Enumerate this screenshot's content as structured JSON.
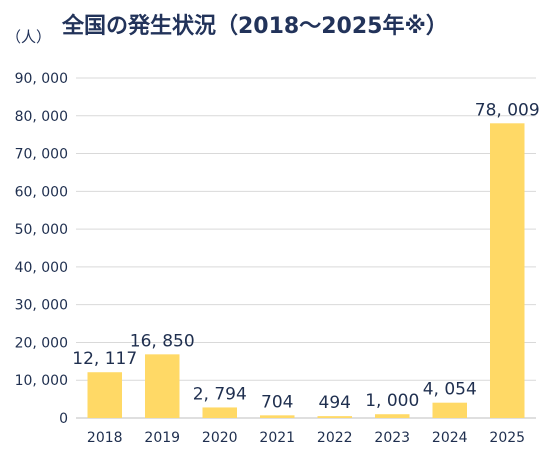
{
  "unit_label": "（人）",
  "chart_data": {
    "type": "bar",
    "title": "全国の発生状況（2018～2025年※）",
    "xlabel": "",
    "ylabel": "（人）",
    "categories": [
      "2018",
      "2019",
      "2020",
      "2021",
      "2022",
      "2023",
      "2024",
      "2025"
    ],
    "values": [
      12117,
      16850,
      2794,
      704,
      494,
      1000,
      4054,
      78009
    ],
    "value_labels": [
      "12, 117",
      "16, 850",
      "2, 794",
      "704",
      "494",
      "1, 000",
      "4, 054",
      "78, 009"
    ],
    "ylim": [
      0,
      90000
    ],
    "yticks": [
      0,
      10000,
      20000,
      30000,
      40000,
      50000,
      60000,
      70000,
      80000,
      90000
    ],
    "ytick_labels": [
      "0",
      "10, 000",
      "20, 000",
      "30, 000",
      "40, 000",
      "50, 000",
      "60, 000",
      "70, 000",
      "80, 000",
      "90, 000"
    ],
    "grid": true,
    "bar_color": "#ffd966",
    "grid_color": "#d9d9d9",
    "text_color": "#1f2f4f"
  }
}
